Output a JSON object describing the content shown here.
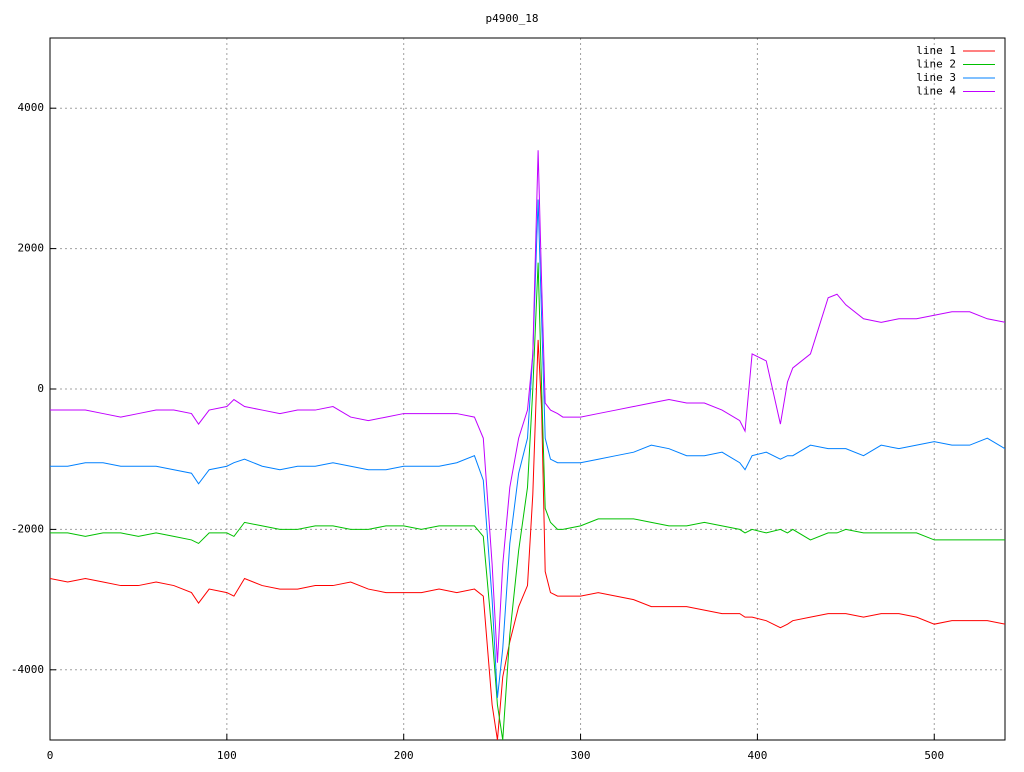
{
  "chart_data": {
    "type": "line",
    "title": "p4900_18",
    "x": [
      0,
      10,
      20,
      30,
      40,
      50,
      60,
      70,
      80,
      84,
      90,
      100,
      104,
      110,
      120,
      130,
      140,
      150,
      160,
      170,
      180,
      190,
      200,
      210,
      220,
      230,
      240,
      245,
      250,
      253,
      256,
      260,
      265,
      270,
      273,
      276,
      278,
      280,
      283,
      287,
      290,
      300,
      310,
      320,
      330,
      340,
      350,
      360,
      370,
      380,
      390,
      393,
      397,
      405,
      413,
      417,
      420,
      430,
      440,
      445,
      450,
      460,
      470,
      480,
      490,
      500,
      510,
      520,
      530,
      540
    ],
    "series": [
      {
        "name": "line 1",
        "color": "#ff0000",
        "values": [
          -2700,
          -2750,
          -2700,
          -2750,
          -2800,
          -2800,
          -2750,
          -2800,
          -2900,
          -3050,
          -2850,
          -2900,
          -2950,
          -2700,
          -2800,
          -2850,
          -2850,
          -2800,
          -2800,
          -2750,
          -2850,
          -2900,
          -2900,
          -2900,
          -2850,
          -2900,
          -2850,
          -2950,
          -4500,
          -5000,
          -4100,
          -3600,
          -3100,
          -2800,
          -1500,
          700,
          -300,
          -2600,
          -2900,
          -2950,
          -2950,
          -2950,
          -2900,
          -2950,
          -3000,
          -3100,
          -3100,
          -3100,
          -3150,
          -3200,
          -3200,
          -3250,
          -3250,
          -3300,
          -3400,
          -3350,
          -3300,
          -3250,
          -3200,
          -3200,
          -3200,
          -3250,
          -3200,
          -3200,
          -3250,
          -3350,
          -3300,
          -3300,
          -3300,
          -3350
        ]
      },
      {
        "name": "line 2",
        "color": "#00c000",
        "values": [
          -2050,
          -2050,
          -2100,
          -2050,
          -2050,
          -2100,
          -2050,
          -2100,
          -2150,
          -2200,
          -2050,
          -2050,
          -2100,
          -1900,
          -1950,
          -2000,
          -2000,
          -1950,
          -1950,
          -2000,
          -2000,
          -1950,
          -1950,
          -2000,
          -1950,
          -1950,
          -1950,
          -2100,
          -3500,
          -4500,
          -5000,
          -3500,
          -2300,
          -1400,
          0,
          1800,
          0,
          -1700,
          -1900,
          -2000,
          -2000,
          -1950,
          -1850,
          -1850,
          -1850,
          -1900,
          -1950,
          -1950,
          -1900,
          -1950,
          -2000,
          -2050,
          -2000,
          -2050,
          -2000,
          -2050,
          -2000,
          -2150,
          -2050,
          -2050,
          -2000,
          -2050,
          -2050,
          -2050,
          -2050,
          -2150,
          -2150,
          -2150,
          -2150,
          -2150
        ]
      },
      {
        "name": "line 3",
        "color": "#0080ff",
        "values": [
          -1100,
          -1100,
          -1050,
          -1050,
          -1100,
          -1100,
          -1100,
          -1150,
          -1200,
          -1350,
          -1150,
          -1100,
          -1050,
          -1000,
          -1100,
          -1150,
          -1100,
          -1100,
          -1050,
          -1100,
          -1150,
          -1150,
          -1100,
          -1100,
          -1100,
          -1050,
          -950,
          -1300,
          -3000,
          -4400,
          -3700,
          -2200,
          -1200,
          -700,
          500,
          2700,
          1000,
          -700,
          -1000,
          -1050,
          -1050,
          -1050,
          -1000,
          -950,
          -900,
          -800,
          -850,
          -950,
          -950,
          -900,
          -1050,
          -1150,
          -950,
          -900,
          -1000,
          -950,
          -950,
          -800,
          -850,
          -850,
          -850,
          -950,
          -800,
          -850,
          -800,
          -750,
          -800,
          -800,
          -700,
          -850
        ]
      },
      {
        "name": "line 4",
        "color": "#c000ff",
        "values": [
          -300,
          -300,
          -300,
          -350,
          -400,
          -350,
          -300,
          -300,
          -350,
          -500,
          -300,
          -250,
          -150,
          -250,
          -300,
          -350,
          -300,
          -300,
          -250,
          -400,
          -450,
          -400,
          -350,
          -350,
          -350,
          -350,
          -400,
          -700,
          -2500,
          -3900,
          -2500,
          -1400,
          -700,
          -300,
          500,
          3400,
          1500,
          -200,
          -300,
          -350,
          -400,
          -400,
          -350,
          -300,
          -250,
          -200,
          -150,
          -200,
          -200,
          -300,
          -450,
          -600,
          500,
          400,
          -500,
          100,
          300,
          500,
          1300,
          1350,
          1200,
          1000,
          950,
          1000,
          1000,
          1050,
          1100,
          1100,
          1000,
          950
        ]
      }
    ],
    "xlim": [
      0,
      540
    ],
    "ylim": [
      -5000,
      5000
    ],
    "xticks": [
      0,
      100,
      200,
      300,
      400,
      500
    ],
    "yticks": [
      -4000,
      -2000,
      0,
      2000,
      4000
    ],
    "grid": true,
    "legend": "top-right"
  }
}
